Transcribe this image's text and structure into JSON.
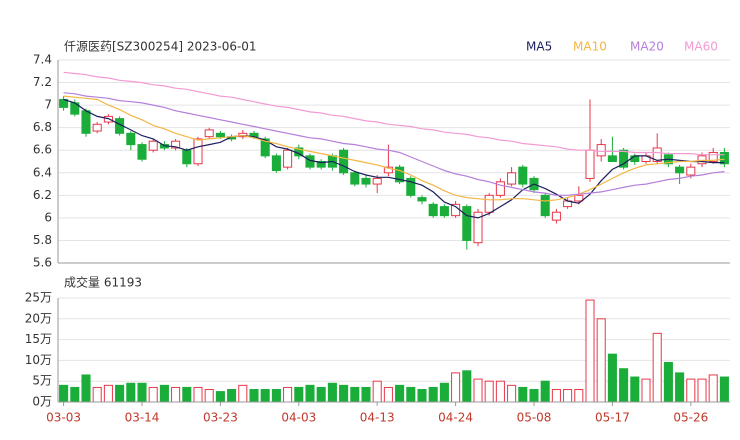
{
  "chart_data": {
    "type": "candlestick",
    "title": "仟源医药[SZ300254] 2023-06-01",
    "categories": [
      "03-03",
      null,
      null,
      null,
      null,
      null,
      null,
      "03-14",
      null,
      null,
      null,
      null,
      null,
      null,
      "03-23",
      null,
      null,
      null,
      null,
      null,
      null,
      "04-03",
      null,
      null,
      null,
      null,
      null,
      null,
      "04-13",
      null,
      null,
      null,
      null,
      null,
      null,
      "04-24",
      null,
      null,
      null,
      null,
      null,
      null,
      "05-08",
      null,
      null,
      null,
      null,
      null,
      null,
      "05-17",
      null,
      null,
      null,
      null,
      null,
      null,
      "05-26",
      null,
      null,
      null
    ],
    "open": [
      7.05,
      7.02,
      6.95,
      6.77,
      6.85,
      6.88,
      6.75,
      6.65,
      6.6,
      6.65,
      6.62,
      6.6,
      6.48,
      6.72,
      6.75,
      6.72,
      6.72,
      6.75,
      6.7,
      6.55,
      6.45,
      6.62,
      6.55,
      6.5,
      6.55,
      6.6,
      6.4,
      6.35,
      6.3,
      6.4,
      6.45,
      6.35,
      6.18,
      6.12,
      6.1,
      6.02,
      6.1,
      5.78,
      6.05,
      6.2,
      6.3,
      6.45,
      6.35,
      6.2,
      5.98,
      6.1,
      6.15,
      6.35,
      6.55,
      6.55,
      6.6,
      6.55,
      6.5,
      6.5,
      6.56,
      6.45,
      6.38,
      6.48,
      6.5,
      6.58
    ],
    "close": [
      6.98,
      6.92,
      6.75,
      6.83,
      6.9,
      6.75,
      6.65,
      6.52,
      6.68,
      6.62,
      6.68,
      6.48,
      6.7,
      6.78,
      6.72,
      6.7,
      6.75,
      6.72,
      6.55,
      6.42,
      6.6,
      6.55,
      6.45,
      6.45,
      6.45,
      6.4,
      6.3,
      6.3,
      6.35,
      6.45,
      6.32,
      6.2,
      6.15,
      6.02,
      6.02,
      6.12,
      5.8,
      6.05,
      6.2,
      6.32,
      6.4,
      6.3,
      6.25,
      6.02,
      6.05,
      6.15,
      6.2,
      6.6,
      6.65,
      6.5,
      6.45,
      6.5,
      6.55,
      6.62,
      6.48,
      6.4,
      6.45,
      6.55,
      6.58,
      6.48
    ],
    "low": [
      6.95,
      6.9,
      6.72,
      6.75,
      6.83,
      6.73,
      6.6,
      6.5,
      6.58,
      6.6,
      6.6,
      6.45,
      6.46,
      6.7,
      6.7,
      6.68,
      6.7,
      6.7,
      6.53,
      6.4,
      6.43,
      6.52,
      6.43,
      6.43,
      6.42,
      6.38,
      6.28,
      6.27,
      6.22,
      6.37,
      6.3,
      6.18,
      6.12,
      6.0,
      6.0,
      6.0,
      5.72,
      5.75,
      6.02,
      6.18,
      6.28,
      6.27,
      6.22,
      6.0,
      5.95,
      6.08,
      6.12,
      6.32,
      6.5,
      6.5,
      6.43,
      6.47,
      6.48,
      6.48,
      6.45,
      6.3,
      6.35,
      6.45,
      6.48,
      6.45
    ],
    "high": [
      7.08,
      7.05,
      6.97,
      6.85,
      6.92,
      6.9,
      6.77,
      6.67,
      6.7,
      6.68,
      6.7,
      6.62,
      6.72,
      6.8,
      6.77,
      6.74,
      6.78,
      6.77,
      6.72,
      6.57,
      6.62,
      6.65,
      6.57,
      6.52,
      6.57,
      6.62,
      6.42,
      6.38,
      6.38,
      6.65,
      6.47,
      6.37,
      6.2,
      6.14,
      6.12,
      6.15,
      6.12,
      6.08,
      6.22,
      6.35,
      6.45,
      6.47,
      6.37,
      6.22,
      6.08,
      6.18,
      6.28,
      7.05,
      6.7,
      6.72,
      6.62,
      6.57,
      6.58,
      6.75,
      6.58,
      6.47,
      6.48,
      6.58,
      6.62,
      6.62
    ],
    "up_color": "#e8374a",
    "down_color": "#1aad3a",
    "series": [
      {
        "name": "MA5",
        "color": "#1c1f5e",
        "values": [
          7.05,
          7.02,
          6.95,
          6.9,
          6.88,
          6.83,
          6.78,
          6.73,
          6.7,
          6.64,
          6.63,
          6.6,
          6.63,
          6.65,
          6.67,
          6.72,
          6.73,
          6.72,
          6.69,
          6.63,
          6.61,
          6.57,
          6.51,
          6.49,
          6.5,
          6.46,
          6.41,
          6.38,
          6.36,
          6.36,
          6.34,
          6.32,
          6.29,
          6.23,
          6.14,
          6.1,
          6.02,
          6.0,
          6.04,
          6.1,
          6.16,
          6.25,
          6.3,
          6.26,
          6.21,
          6.15,
          6.13,
          6.21,
          6.33,
          6.43,
          6.48,
          6.55,
          6.55,
          6.51,
          6.52,
          6.51,
          6.5,
          6.5,
          6.49,
          6.49
        ]
      },
      {
        "name": "MA10",
        "color": "#f3b743",
        "values": [
          7.08,
          7.07,
          7.06,
          7.05,
          7.0,
          6.96,
          6.91,
          6.87,
          6.82,
          6.79,
          6.75,
          6.72,
          6.69,
          6.7,
          6.71,
          6.72,
          6.73,
          6.71,
          6.68,
          6.66,
          6.63,
          6.61,
          6.59,
          6.57,
          6.55,
          6.53,
          6.51,
          6.49,
          6.47,
          6.44,
          6.42,
          6.38,
          6.33,
          6.29,
          6.24,
          6.2,
          6.18,
          6.17,
          6.16,
          6.16,
          6.17,
          6.17,
          6.16,
          6.15,
          6.16,
          6.18,
          6.21,
          6.25,
          6.3,
          6.35,
          6.4,
          6.44,
          6.47,
          6.48,
          6.49,
          6.5,
          6.5,
          6.51,
          6.51,
          6.52
        ]
      },
      {
        "name": "MA20",
        "color": "#b580db",
        "values": [
          7.11,
          7.1,
          7.08,
          7.07,
          7.06,
          7.04,
          7.03,
          7.02,
          7.0,
          6.98,
          6.95,
          6.93,
          6.91,
          6.89,
          6.87,
          6.85,
          6.83,
          6.81,
          6.79,
          6.77,
          6.75,
          6.73,
          6.71,
          6.7,
          6.68,
          6.66,
          6.65,
          6.63,
          6.61,
          6.6,
          6.58,
          6.54,
          6.5,
          6.46,
          6.42,
          6.39,
          6.37,
          6.34,
          6.32,
          6.29,
          6.27,
          6.25,
          6.23,
          6.22,
          6.2,
          6.2,
          6.21,
          6.22,
          6.23,
          6.25,
          6.27,
          6.29,
          6.3,
          6.32,
          6.34,
          6.35,
          6.37,
          6.38,
          6.4,
          6.41
        ]
      },
      {
        "name": "MA60",
        "color": "#f29bd2",
        "values": [
          7.29,
          7.28,
          7.27,
          7.25,
          7.24,
          7.22,
          7.21,
          7.2,
          7.18,
          7.17,
          7.15,
          7.14,
          7.12,
          7.1,
          7.08,
          7.07,
          7.05,
          7.03,
          7.01,
          6.99,
          6.98,
          6.96,
          6.94,
          6.93,
          6.91,
          6.9,
          6.88,
          6.86,
          6.85,
          6.83,
          6.82,
          6.81,
          6.79,
          6.78,
          6.76,
          6.75,
          6.74,
          6.72,
          6.71,
          6.69,
          6.68,
          6.66,
          6.65,
          6.64,
          6.63,
          6.61,
          6.6,
          6.6,
          6.59,
          6.59,
          6.59,
          6.58,
          6.58,
          6.58,
          6.57,
          6.57,
          6.57,
          6.56,
          6.56,
          6.56
        ]
      }
    ],
    "ylim": [
      5.6,
      7.4
    ],
    "yticks": [
      5.6,
      5.8,
      6,
      6.2,
      6.4,
      6.6,
      6.8,
      7,
      7.2,
      7.4
    ],
    "grid": true,
    "volume": {
      "title": "成交量 61193",
      "values": [
        4,
        3.5,
        6.5,
        3.5,
        4,
        4,
        4.5,
        4.5,
        3.5,
        4,
        3.5,
        3.5,
        3.5,
        3,
        2.5,
        3,
        4,
        3,
        3,
        3,
        3.5,
        3.5,
        4,
        3.5,
        4.5,
        4,
        3.5,
        3.5,
        5,
        3.5,
        4,
        3.5,
        3,
        3.5,
        4.5,
        7,
        7.5,
        5.5,
        5,
        5,
        4,
        3.5,
        3,
        5,
        3,
        3,
        3,
        24.5,
        20,
        11.5,
        8,
        6,
        5.5,
        16.5,
        9.5,
        7,
        5.5,
        5.5,
        6.5,
        6
      ],
      "ylim": [
        0,
        25
      ],
      "yticks": [
        {
          "value": 0,
          "label": "0万"
        },
        {
          "value": 5,
          "label": "5万"
        },
        {
          "value": 10,
          "label": "10万"
        },
        {
          "value": 15,
          "label": "15万"
        },
        {
          "value": 20,
          "label": "20万"
        },
        {
          "value": 25,
          "label": "25万"
        }
      ]
    }
  }
}
